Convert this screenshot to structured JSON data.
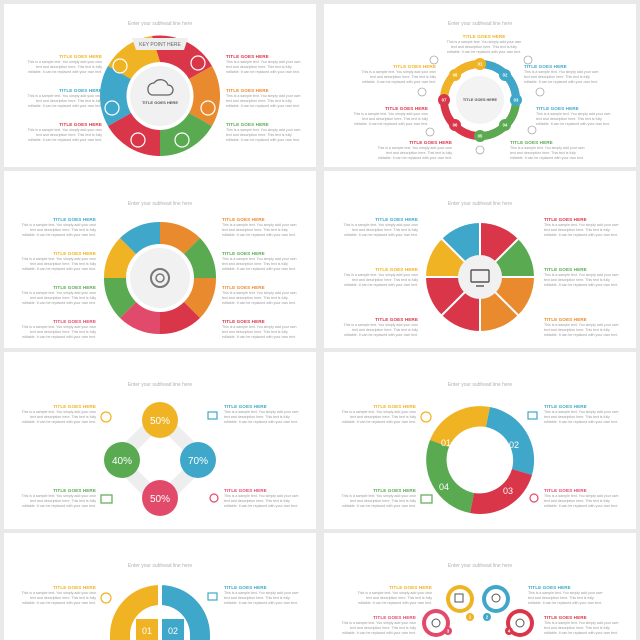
{
  "colors": {
    "yellow": "#f0b323",
    "red": "#d9364a",
    "orange": "#e98a2f",
    "green": "#5aaa52",
    "blue": "#3fa7c9",
    "pink": "#e24a6b"
  },
  "common": {
    "subtitle": "Enter your subhead line here",
    "title": "TITLE GOES HERE",
    "body": "This is a sample text. You simply add your own text and description here. This text is fully editable. It can be replaced with your own text."
  },
  "slide1": {
    "banner": "KEY POINT HERE",
    "hub": "TITLE GOES HERE"
  },
  "slide2": {
    "hub": "TITLE GOES HERE",
    "nodes": [
      "01",
      "02",
      "03",
      "04",
      "05",
      "06",
      "07",
      "08"
    ]
  },
  "slide5": {
    "values": [
      "50%",
      "40%",
      "70%",
      "50%"
    ]
  },
  "slide6": {
    "labels": [
      "01",
      "02",
      "03",
      "04"
    ]
  },
  "slide7": {
    "labels": [
      "01",
      "02"
    ]
  },
  "slide8": {
    "nodes": [
      "1",
      "2",
      "3",
      "4"
    ]
  }
}
